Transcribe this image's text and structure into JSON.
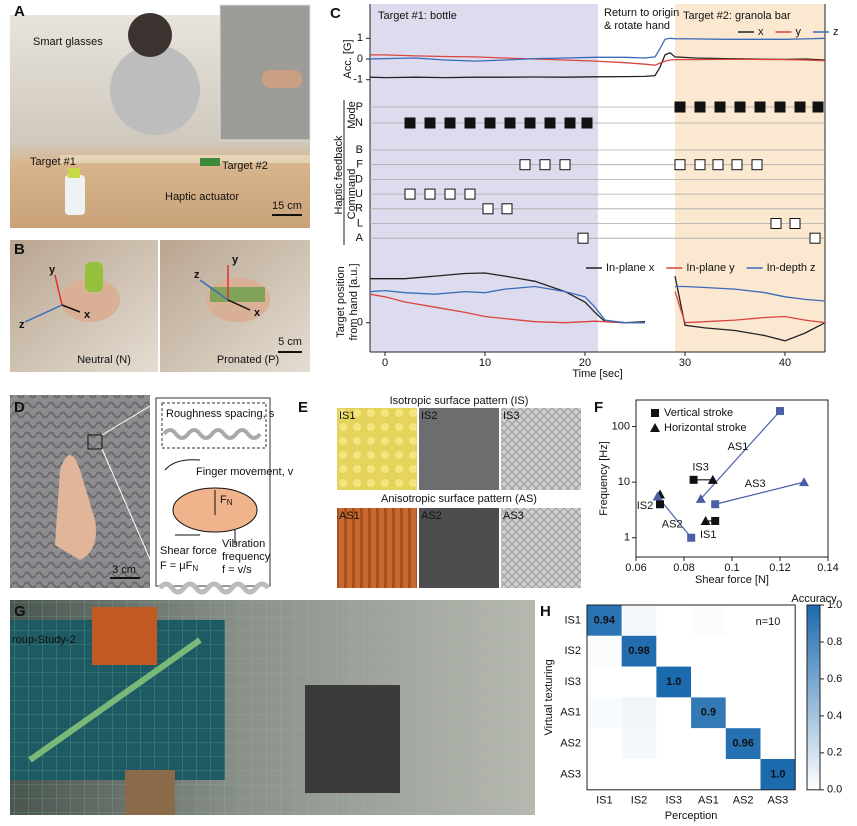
{
  "panel_labels": [
    "A",
    "B",
    "C",
    "D",
    "E",
    "F",
    "G",
    "H"
  ],
  "panel_a": {
    "smart_glasses": "Smart glasses",
    "target_1": "Target #1",
    "target_2": "Target #2",
    "actuator": "Haptic actuator",
    "scale": "15 cm"
  },
  "panel_b": {
    "neutral": "Neutral (N)",
    "pronated": "Pronated (P)",
    "scale": "5 cm",
    "axes_neutral": [
      "y",
      "x",
      "z"
    ],
    "axes_pronated": [
      "y",
      "z",
      "x"
    ]
  },
  "panel_d": {
    "roughness": "Roughness spacing, s",
    "finger": "Finger movement, v",
    "normal_force": [
      "F",
      "N"
    ],
    "shear": "Shear force",
    "shear_formula": [
      "F = μF",
      "N"
    ],
    "vibration": [
      "Vibration",
      "frequency",
      "f = v/s"
    ],
    "scale": "3 cm"
  },
  "panel_e": {
    "isotropic_title": "Isotropic surface pattern (IS)",
    "anisotropic_title": "Anisotropic surface pattern (AS)",
    "tiles": [
      "IS1",
      "IS2",
      "IS3",
      "AS1",
      "AS2",
      "AS3"
    ]
  },
  "panel_g": {
    "screen_text": "roup-Study-2"
  },
  "chart_data": [
    {
      "type": "line",
      "ylabel": "Acc. [G]",
      "xlim": [
        -1.5,
        44
      ],
      "ylim": [
        -1.4,
        1.4
      ],
      "yticks": [
        -1,
        0,
        1
      ],
      "regions": [
        {
          "label": "Target #1: bottle",
          "start": -1.5,
          "end": 21.3,
          "color": "#dcdcee",
          "label_color": "#3a4fa0"
        },
        {
          "label": "Target #2: granola bar",
          "start": 29,
          "end": 44,
          "color": "#fbe8d0",
          "label_color": "#e0953a"
        }
      ],
      "annotation": [
        "Return to origin",
        "& rotate hand"
      ],
      "x": [
        -1.5,
        0,
        3,
        6,
        9,
        12,
        15,
        18,
        21,
        24,
        26,
        27,
        27.5,
        28,
        28.5,
        29,
        31,
        34,
        37,
        40,
        42,
        44
      ],
      "series": [
        {
          "name": "x",
          "color": "#222222",
          "values": [
            -0.88,
            -0.9,
            -0.88,
            -0.9,
            -0.88,
            -0.88,
            -0.87,
            -0.88,
            -0.86,
            -0.85,
            -0.84,
            -0.8,
            -0.4,
            0.2,
            0.3,
            0.1,
            0.05,
            0.02,
            0,
            -0.02,
            0,
            -0.05
          ]
        },
        {
          "name": "y",
          "color": "#d9453f",
          "values": [
            0.2,
            0.2,
            0.15,
            0.12,
            0.1,
            0.05,
            0,
            -0.05,
            -0.1,
            -0.18,
            -0.25,
            -0.3,
            -0.2,
            -0.1,
            -0.05,
            -0.03,
            -0.03,
            -0.02,
            -0.02,
            -0.03,
            -0.05,
            -0.08
          ]
        },
        {
          "name": "z",
          "color": "#3a6bb8",
          "values": [
            0,
            0.02,
            0.05,
            -0.05,
            -0.1,
            -0.05,
            0.02,
            0.05,
            0.08,
            0.08,
            0.05,
            0.1,
            0.5,
            0.95,
            1.0,
            0.98,
            0.97,
            0.95,
            0.95,
            0.95,
            0.97,
            1.0
          ]
        }
      ]
    },
    {
      "type": "event",
      "group_label": "Haptic feedback",
      "xlim": [
        -1.5,
        44
      ],
      "mode": {
        "label": "Mode",
        "categories": [
          "P",
          "N"
        ],
        "x": [
          2.5,
          4.5,
          6.5,
          8.5,
          10.5,
          12.5,
          14.5,
          16.5,
          18.5,
          20.2,
          29.5,
          31.5,
          33.5,
          35.5,
          37.5,
          39.5,
          41.5,
          43.3
        ],
        "values": [
          "N",
          "N",
          "N",
          "N",
          "N",
          "N",
          "N",
          "N",
          "N",
          "N",
          "P",
          "P",
          "P",
          "P",
          "P",
          "P",
          "P",
          "P"
        ]
      },
      "command": {
        "label": "Command",
        "categories": [
          "B",
          "F",
          "D",
          "U",
          "R",
          "L",
          "A"
        ],
        "x": [
          2.5,
          4.5,
          6.5,
          8.5,
          10.3,
          12.2,
          14,
          16,
          18,
          19.8,
          29.5,
          31.5,
          33.3,
          35.2,
          37.2,
          39.1,
          41,
          43
        ],
        "values": [
          "U",
          "U",
          "U",
          "U",
          "R",
          "R",
          "F",
          "F",
          "F",
          "A",
          "F",
          "F",
          "F",
          "F",
          "F",
          "L",
          "L",
          "A"
        ]
      }
    },
    {
      "type": "line",
      "ylabel": [
        "Target position",
        "from hand [a.u.]"
      ],
      "xlabel": "Time [sec]",
      "xlim": [
        -1.5,
        44
      ],
      "xticks": [
        0,
        10,
        20,
        30,
        40
      ],
      "ylim": [
        -0.45,
        1.25
      ],
      "yticks": [
        0
      ],
      "x": [
        -1.5,
        0,
        2,
        5,
        8,
        10,
        12,
        15,
        18,
        20,
        21,
        22,
        24,
        26,
        27,
        28,
        29,
        30,
        32,
        35,
        38,
        40,
        42,
        44
      ],
      "series": [
        {
          "name": "In-plane x",
          "color": "#222222",
          "values": [
            0.85,
            0.85,
            0.85,
            0.9,
            0.95,
            0.96,
            0.9,
            0.8,
            0.6,
            0.4,
            0.2,
            0.02,
            0,
            0.02,
            null,
            null,
            0.9,
            -0.05,
            -0.1,
            -0.15,
            -0.25,
            -0.35,
            -0.2,
            0
          ]
        },
        {
          "name": "In-plane y",
          "color": "#d9453f",
          "values": [
            0.55,
            0.5,
            0.4,
            0.3,
            0.2,
            0.12,
            0.08,
            0.02,
            0,
            0.02,
            0.03,
            0.02,
            0,
            0,
            null,
            null,
            0.6,
            0,
            0.02,
            0.05,
            0.1,
            0.12,
            0.05,
            0
          ]
        },
        {
          "name": "In-depth z",
          "color": "#3a6bb8",
          "values": [
            0.6,
            0.62,
            0.58,
            0.55,
            0.6,
            0.58,
            0.65,
            0.7,
            0.6,
            0.5,
            0.3,
            0.05,
            0,
            0,
            null,
            null,
            0.7,
            0.7,
            0.68,
            0.65,
            0.58,
            0.5,
            0.45,
            0.42
          ]
        }
      ]
    },
    {
      "type": "scatter",
      "xlabel": "Shear force [N]",
      "ylabel": "Frequency [Hz]",
      "log_y": true,
      "xlim": [
        0.06,
        0.14
      ],
      "xticks": [
        0.06,
        0.08,
        0.1,
        0.12,
        0.14
      ],
      "ylim": [
        0.45,
        300
      ],
      "yticks": [
        1,
        10,
        100
      ],
      "groups": [
        {
          "name": "IS1",
          "color": "#111111"
        },
        {
          "name": "IS2",
          "color": "#111111"
        },
        {
          "name": "IS3",
          "color": "#111111"
        },
        {
          "name": "AS1",
          "color": "#4a5fa8"
        },
        {
          "name": "AS2",
          "color": "#4a5fa8"
        },
        {
          "name": "AS3",
          "color": "#4a5fa8"
        }
      ],
      "series": [
        {
          "name": "Vertical stroke",
          "marker": "square",
          "x": [
            0.093,
            0.07,
            0.084,
            0.12,
            0.083,
            0.093
          ],
          "values": [
            2,
            4,
            11,
            190,
            1,
            4
          ]
        },
        {
          "name": "Horizontal stroke",
          "marker": "triangle",
          "x": [
            0.089,
            0.07,
            0.092,
            0.087,
            0.069,
            0.13
          ],
          "values": [
            2,
            6,
            11,
            5,
            5.5,
            10
          ]
        }
      ]
    },
    {
      "type": "heatmap",
      "xlabel": "Perception",
      "ylabel": "Virtual texturing",
      "colorbar_label": "Accuracy",
      "annotation": "n=10",
      "categories": [
        "IS1",
        "IS2",
        "IS3",
        "AS1",
        "AS2",
        "AS3"
      ],
      "values": [
        [
          0.94,
          0.04,
          0,
          0.02,
          0,
          0
        ],
        [
          0.02,
          0.98,
          0,
          0,
          0,
          0
        ],
        [
          0,
          0,
          1.0,
          0,
          0,
          0
        ],
        [
          0.03,
          0.07,
          0,
          0.9,
          0,
          0
        ],
        [
          0,
          0.04,
          0,
          0,
          0.96,
          0
        ],
        [
          0,
          0,
          0,
          0,
          0,
          1.0
        ]
      ],
      "value_labels": [
        [
          "0.94",
          null,
          null,
          null,
          null,
          null
        ],
        [
          null,
          "0.98",
          null,
          null,
          null,
          null
        ],
        [
          null,
          null,
          "1.0",
          null,
          null,
          null
        ],
        [
          null,
          null,
          null,
          "0.9",
          null,
          null
        ],
        [
          null,
          null,
          null,
          null,
          "0.96",
          null
        ],
        [
          null,
          null,
          null,
          null,
          null,
          "1.0"
        ]
      ],
      "clim": [
        0,
        1
      ],
      "colormap": [
        "#ffffff",
        "#1c6aae"
      ],
      "cticks": [
        {
          "value": 0,
          "label": "0.0"
        },
        0.2,
        0.4,
        0.6,
        0.8,
        {
          "value": 1,
          "label": "1.0"
        }
      ]
    }
  ]
}
